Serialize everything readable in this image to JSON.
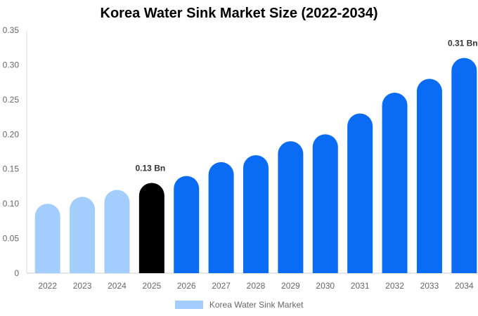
{
  "chart_data": {
    "type": "bar",
    "title": "Korea Water Sink Market Size (2022-2034)",
    "xlabel": "",
    "ylabel": "",
    "categories": [
      "2022",
      "2023",
      "2024",
      "2025",
      "2026",
      "2027",
      "2028",
      "2029",
      "2030",
      "2031",
      "2032",
      "2033",
      "2034"
    ],
    "series": [
      {
        "name": "Korea Water Sink Market",
        "values": [
          0.1,
          0.11,
          0.12,
          0.13,
          0.14,
          0.16,
          0.17,
          0.19,
          0.2,
          0.23,
          0.26,
          0.28,
          0.31
        ]
      }
    ],
    "ylim": [
      0,
      0.35
    ],
    "yticks": [
      "0",
      "0.05",
      "0.10",
      "0.15",
      "0.20",
      "0.25",
      "0.30",
      "0.35"
    ],
    "data_labels": [
      {
        "category": "2025",
        "text": "0.13 Bn"
      },
      {
        "category": "2034",
        "text": "0.31 Bn"
      }
    ],
    "bar_colors": {
      "historical": "#a3cdfd",
      "current": "#000000",
      "forecast": "#0a6cf5"
    },
    "current_year": "2025",
    "grid": false,
    "legend_position": "bottom"
  }
}
